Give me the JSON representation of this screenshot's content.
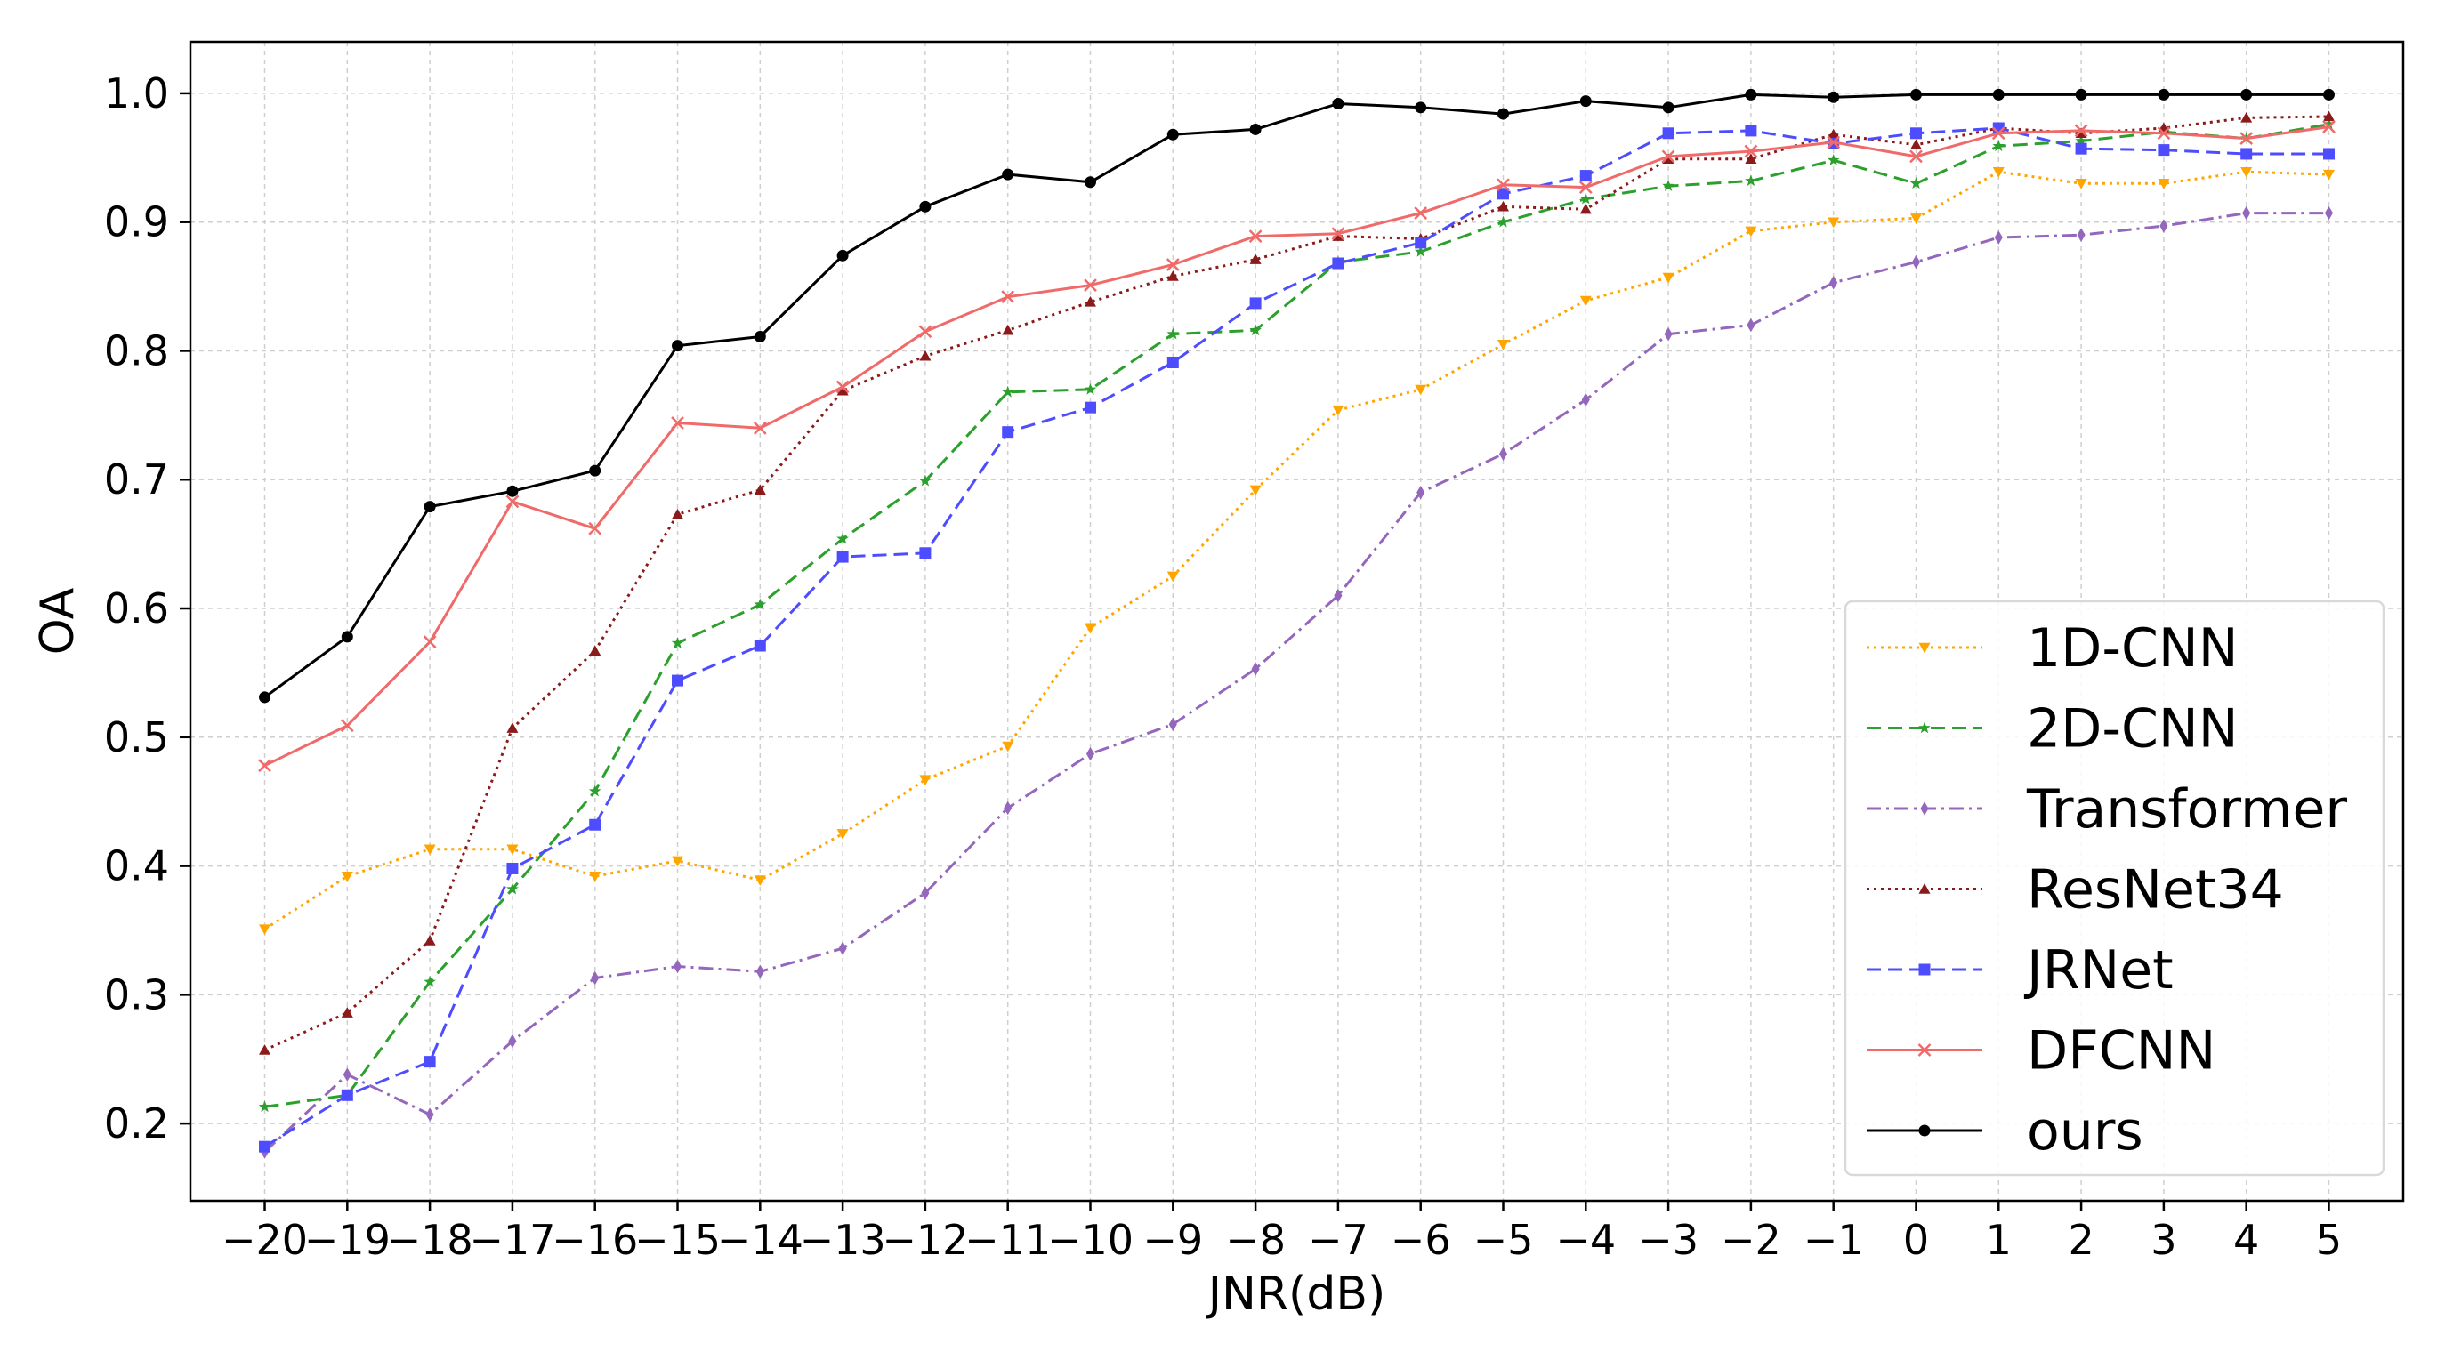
{
  "chart_data": {
    "type": "line",
    "xlabel": "JNR(dB)",
    "ylabel": "OA",
    "x": [
      -20,
      -19,
      -18,
      -17,
      -16,
      -15,
      -14,
      -13,
      -12,
      -11,
      -10,
      -9,
      -8,
      -7,
      -6,
      -5,
      -4,
      -3,
      -2,
      -1,
      0,
      1,
      2,
      3,
      4,
      5
    ],
    "x_tick_labels": [
      "−20",
      "−19",
      "−18",
      "−17",
      "−16",
      "−15",
      "−14",
      "−13",
      "−12",
      "−11",
      "−10",
      "−9",
      "−8",
      "−7",
      "−6",
      "−5",
      "−4",
      "−3",
      "−2",
      "−1",
      "0",
      "1",
      "2",
      "3",
      "4",
      "5"
    ],
    "yticks": [
      0.2,
      0.3,
      0.4,
      0.5,
      0.6,
      0.7,
      0.8,
      0.9,
      1.0
    ],
    "y_tick_labels": [
      "0.2",
      "0.3",
      "0.4",
      "0.5",
      "0.6",
      "0.7",
      "0.8",
      "0.9",
      "1.0"
    ],
    "xlim": [
      -20.9,
      5.9
    ],
    "ylim": [
      0.14,
      1.04
    ],
    "grid": true,
    "legend_position": "bottom-right",
    "series": [
      {
        "name": "1D-CNN",
        "color": "#FFA500",
        "dash": "dotted",
        "marker": "triangle-down",
        "values": [
          0.351,
          0.392,
          0.413,
          0.413,
          0.392,
          0.404,
          0.389,
          0.425,
          0.467,
          0.493,
          0.585,
          0.625,
          0.692,
          0.754,
          0.77,
          0.805,
          0.839,
          0.857,
          0.893,
          0.9,
          0.903,
          0.939,
          0.93,
          0.93,
          0.939,
          0.937
        ]
      },
      {
        "name": "2D-CNN",
        "color": "#2CA02C",
        "dash": "dashed",
        "marker": "star",
        "values": [
          0.213,
          0.222,
          0.31,
          0.382,
          0.458,
          0.573,
          0.603,
          0.654,
          0.699,
          0.768,
          0.77,
          0.813,
          0.816,
          0.869,
          0.877,
          0.9,
          0.918,
          0.928,
          0.932,
          0.948,
          0.93,
          0.959,
          0.963,
          0.97,
          0.965,
          0.976
        ]
      },
      {
        "name": "Transformer",
        "color": "#9467BD",
        "dash": "dashdot",
        "marker": "thin-diamond",
        "values": [
          0.178,
          0.238,
          0.207,
          0.264,
          0.313,
          0.322,
          0.318,
          0.336,
          0.379,
          0.445,
          0.487,
          0.51,
          0.553,
          0.61,
          0.69,
          0.72,
          0.762,
          0.813,
          0.82,
          0.853,
          0.869,
          0.888,
          0.89,
          0.897,
          0.907,
          0.907
        ]
      },
      {
        "name": "ResNet34",
        "color": "#8B1A1A",
        "dash": "dotted",
        "marker": "triangle-up",
        "values": [
          0.257,
          0.286,
          0.342,
          0.507,
          0.567,
          0.673,
          0.692,
          0.769,
          0.796,
          0.816,
          0.838,
          0.858,
          0.871,
          0.889,
          0.887,
          0.912,
          0.91,
          0.949,
          0.949,
          0.968,
          0.96,
          0.973,
          0.969,
          0.973,
          0.981,
          0.982
        ]
      },
      {
        "name": "JRNet",
        "color": "#4D4DFF",
        "dash": "dashed",
        "marker": "square",
        "values": [
          0.182,
          0.222,
          0.248,
          0.398,
          0.432,
          0.544,
          0.571,
          0.64,
          0.643,
          0.737,
          0.756,
          0.791,
          0.837,
          0.868,
          0.884,
          0.922,
          0.936,
          0.969,
          0.971,
          0.961,
          0.969,
          0.973,
          0.957,
          0.956,
          0.953,
          0.953
        ]
      },
      {
        "name": "DFCNN",
        "color": "#F06A6A",
        "dash": "solid",
        "marker": "x",
        "values": [
          0.478,
          0.509,
          0.574,
          0.683,
          0.662,
          0.744,
          0.74,
          0.772,
          0.815,
          0.842,
          0.851,
          0.867,
          0.889,
          0.891,
          0.907,
          0.929,
          0.927,
          0.951,
          0.955,
          0.962,
          0.951,
          0.969,
          0.971,
          0.969,
          0.965,
          0.974
        ]
      },
      {
        "name": "ours",
        "color": "#000000",
        "dash": "solid",
        "marker": "circle",
        "values": [
          0.531,
          0.578,
          0.679,
          0.691,
          0.707,
          0.804,
          0.811,
          0.874,
          0.912,
          0.937,
          0.931,
          0.968,
          0.972,
          0.992,
          0.989,
          0.984,
          0.994,
          0.989,
          0.999,
          0.997,
          0.999,
          0.999,
          0.999,
          0.999,
          0.999,
          0.999
        ]
      }
    ]
  }
}
